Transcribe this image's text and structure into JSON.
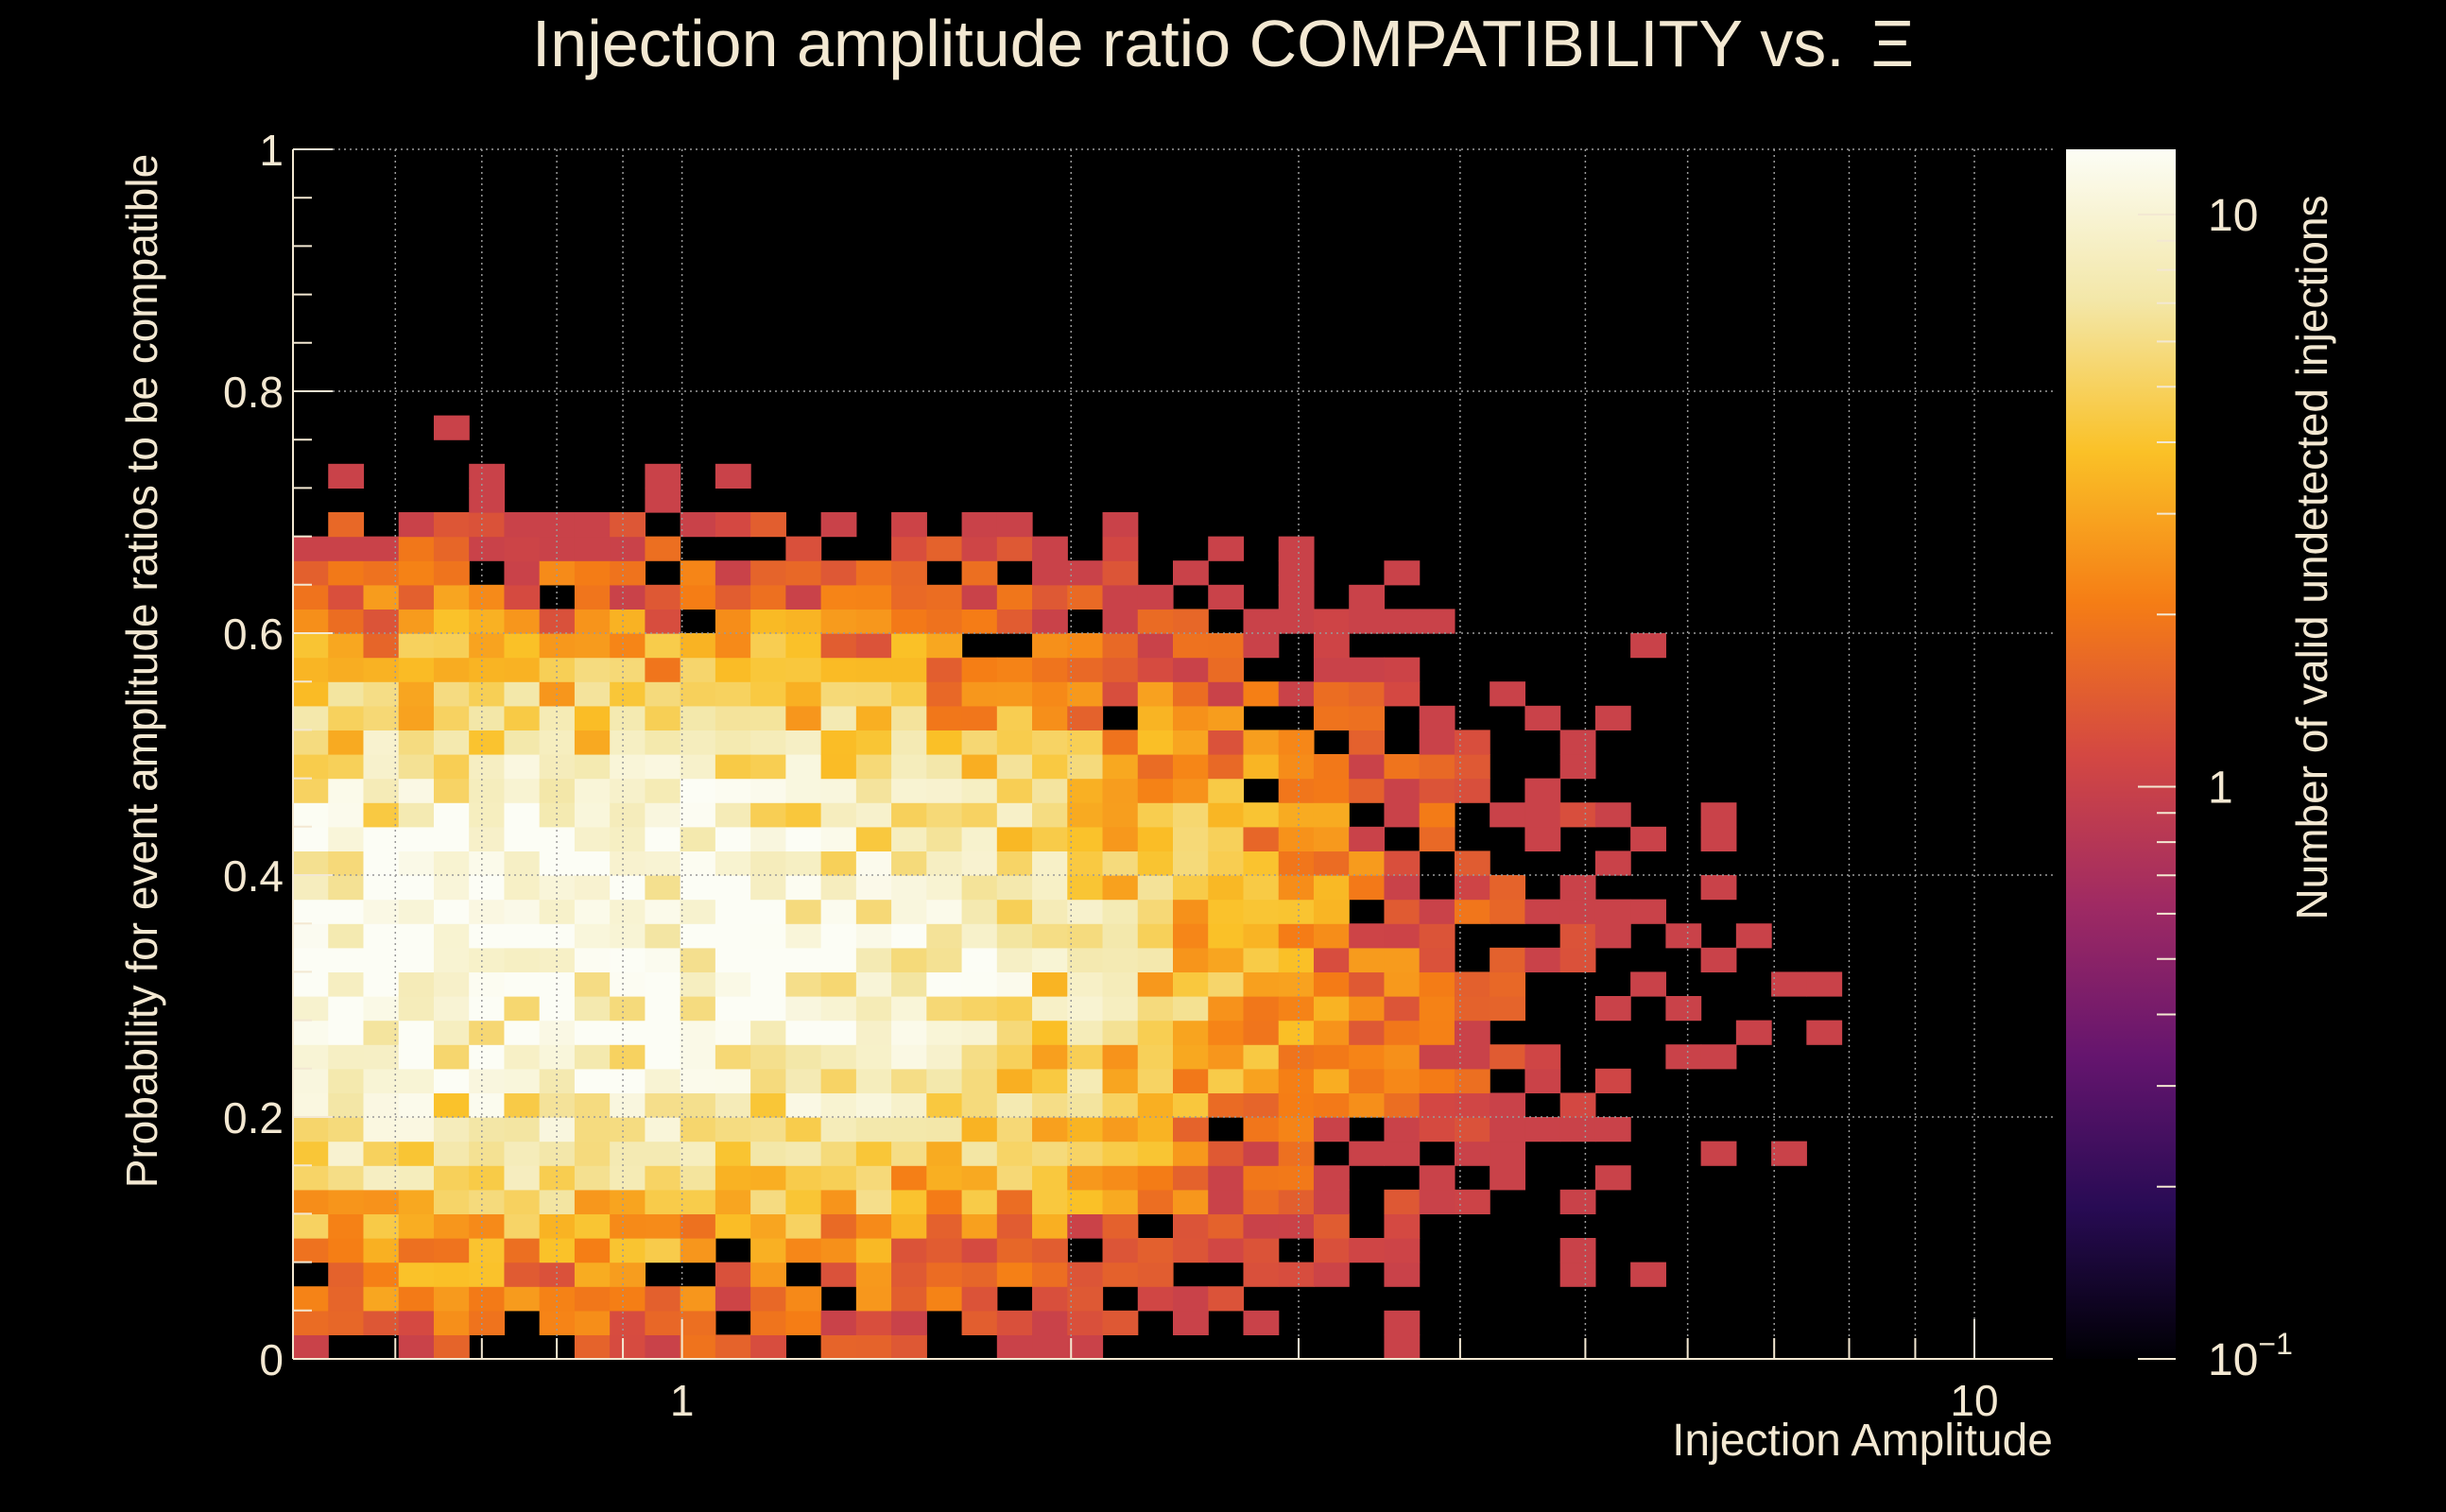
{
  "chart_data": {
    "type": "heatmap",
    "title": "Injection amplitude ratio COMPATIBILITY vs.",
    "title_symbol": "Ξ",
    "xlabel": "Injection Amplitude",
    "ylabel": "Probability for event amplitude ratios to be compatible",
    "colorbar_label": "Number of valid undetected injections",
    "x_scale": "log",
    "xlim": [
      0.5,
      11.5
    ],
    "ylim": [
      0,
      1
    ],
    "x_ticks": [
      {
        "value": 1,
        "label": "1"
      },
      {
        "value": 10,
        "label": "10"
      }
    ],
    "y_ticks": [
      {
        "value": 0,
        "label": "0"
      },
      {
        "value": 0.2,
        "label": "0.2"
      },
      {
        "value": 0.4,
        "label": "0.4"
      },
      {
        "value": 0.6,
        "label": "0.6"
      },
      {
        "value": 0.8,
        "label": "0.8"
      },
      {
        "value": 1,
        "label": "1"
      }
    ],
    "z_scale": "log",
    "zlim": [
      0.1,
      13
    ],
    "z_ticks": [
      {
        "value": 0.1,
        "label": "10",
        "sup": "−1"
      },
      {
        "value": 1,
        "label": "1",
        "sup": ""
      },
      {
        "value": 10,
        "label": "10",
        "sup": ""
      }
    ],
    "bins": {
      "nx": 50,
      "ny": 50
    },
    "grid": true,
    "colormap": [
      "#000004",
      "#280b54",
      "#65156e",
      "#9f2a63",
      "#d44842",
      "#f57d15",
      "#fac127",
      "#f3e7a8",
      "#fcfdf5"
    ],
    "density_model": "counts peak near amplitude 0.7-2 and probability 0.25-0.45 (max ~12 per bin), decreasing toward high amplitude and probability near 1; many empty bins at the edges"
  }
}
